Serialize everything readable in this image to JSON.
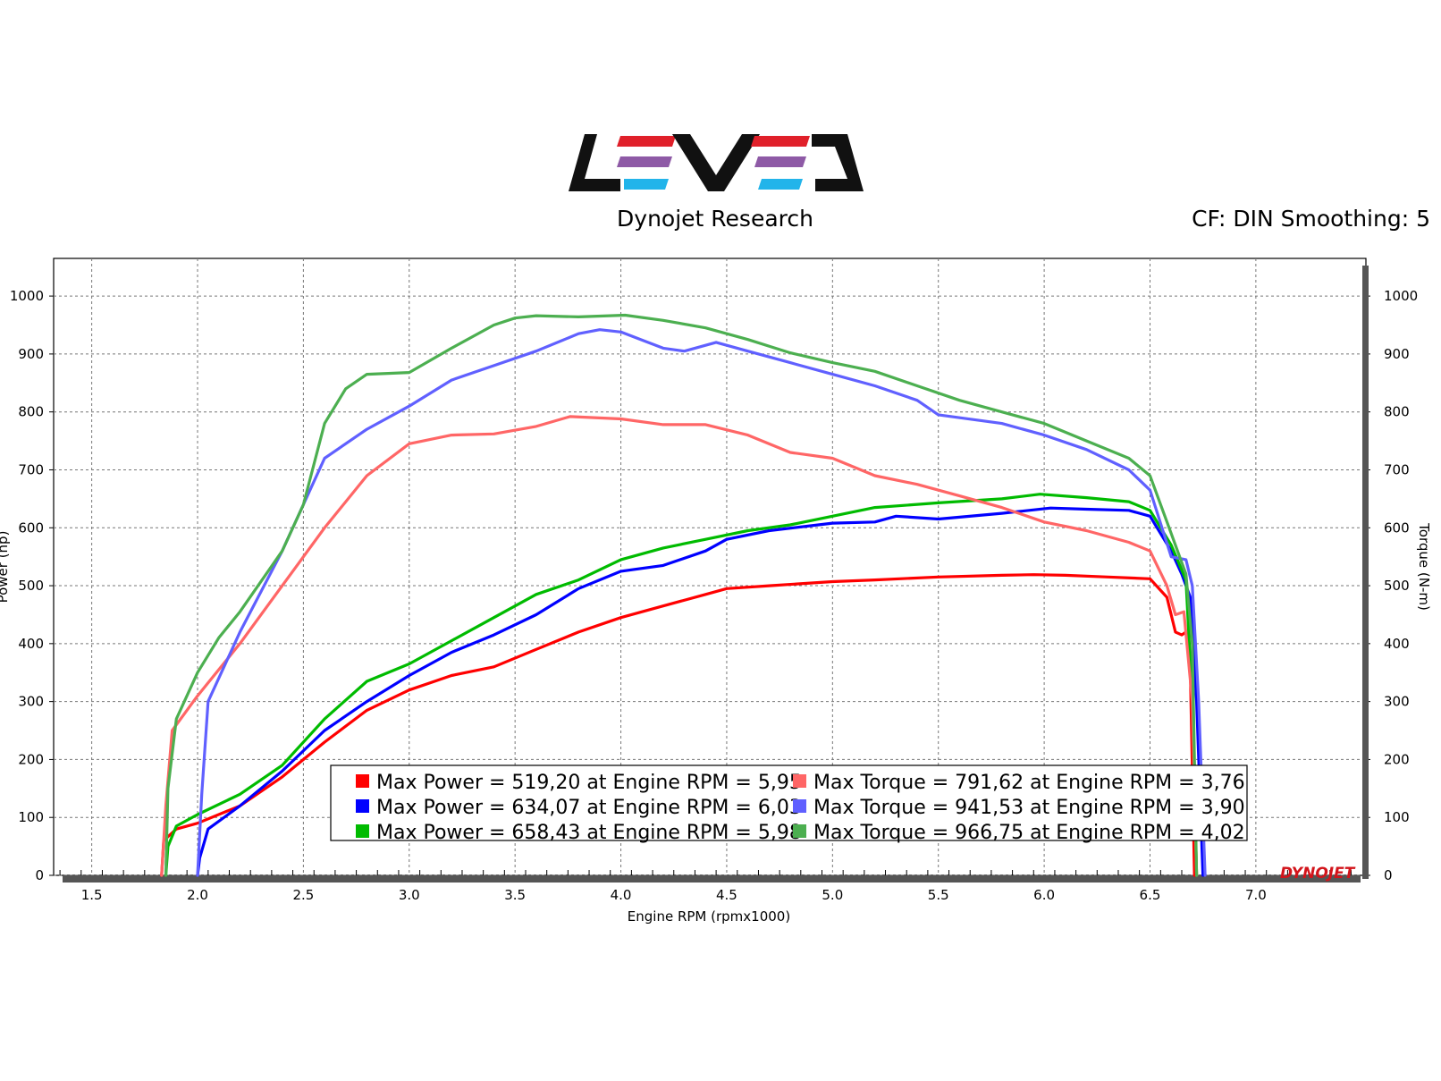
{
  "header": {
    "brand": "Dynojet Research",
    "settings": "CF: DIN Smoothing: 5",
    "corner_mark": "DYNOJET",
    "logo_colors": [
      "#e0202a",
      "#8e5aa6",
      "#22b4ea",
      "#111111"
    ]
  },
  "chart_data": {
    "type": "line",
    "xlabel": "Engine RPM (rpmx1000)",
    "ylabel_left": "Power (hp)",
    "ylabel_right": "Torque (N-m)",
    "xlim": [
      1.32,
      7.52
    ],
    "ylim": [
      0,
      1065
    ],
    "x_ticks": [
      "1.5",
      "2.0",
      "2.5",
      "3.0",
      "3.5",
      "4.0",
      "4.5",
      "5.0",
      "5.5",
      "6.0",
      "6.5",
      "7.0"
    ],
    "x_tick_values": [
      1.5,
      2.0,
      2.5,
      3.0,
      3.5,
      4.0,
      4.5,
      5.0,
      5.5,
      6.0,
      6.5,
      7.0
    ],
    "y_ticks": [
      "0",
      "100",
      "200",
      "300",
      "400",
      "500",
      "600",
      "700",
      "800",
      "900",
      "1000"
    ],
    "y_tick_values": [
      0,
      100,
      200,
      300,
      400,
      500,
      600,
      700,
      800,
      900,
      1000
    ],
    "grid": true,
    "legend_position": "bottom-center",
    "series": [
      {
        "axis": "power",
        "color": "#ff0000",
        "legend": "Max Power = 519,20 at Engine RPM = 5,95",
        "points": [
          [
            1.83,
            0
          ],
          [
            1.84,
            60
          ],
          [
            1.9,
            80
          ],
          [
            2.0,
            90
          ],
          [
            2.2,
            120
          ],
          [
            2.4,
            170
          ],
          [
            2.6,
            230
          ],
          [
            2.8,
            285
          ],
          [
            3.0,
            320
          ],
          [
            3.2,
            345
          ],
          [
            3.4,
            360
          ],
          [
            3.6,
            390
          ],
          [
            3.8,
            420
          ],
          [
            4.0,
            445
          ],
          [
            4.2,
            465
          ],
          [
            4.4,
            485
          ],
          [
            4.5,
            495
          ],
          [
            4.7,
            500
          ],
          [
            5.0,
            507
          ],
          [
            5.2,
            510
          ],
          [
            5.5,
            515
          ],
          [
            5.8,
            518
          ],
          [
            5.95,
            519
          ],
          [
            6.1,
            518
          ],
          [
            6.3,
            515
          ],
          [
            6.5,
            512
          ],
          [
            6.58,
            480
          ],
          [
            6.62,
            420
          ],
          [
            6.65,
            415
          ],
          [
            6.67,
            420
          ],
          [
            6.69,
            360
          ],
          [
            6.71,
            0
          ]
        ]
      },
      {
        "axis": "power",
        "color": "#0000ff",
        "legend": "Max Power = 634,07 at Engine RPM = 6,03",
        "points": [
          [
            2.0,
            0
          ],
          [
            2.01,
            30
          ],
          [
            2.05,
            80
          ],
          [
            2.2,
            120
          ],
          [
            2.4,
            180
          ],
          [
            2.6,
            250
          ],
          [
            2.8,
            300
          ],
          [
            3.0,
            345
          ],
          [
            3.2,
            385
          ],
          [
            3.4,
            415
          ],
          [
            3.6,
            450
          ],
          [
            3.8,
            495
          ],
          [
            4.0,
            525
          ],
          [
            4.2,
            535
          ],
          [
            4.4,
            560
          ],
          [
            4.5,
            580
          ],
          [
            4.7,
            595
          ],
          [
            5.0,
            608
          ],
          [
            5.2,
            610
          ],
          [
            5.3,
            620
          ],
          [
            5.5,
            615
          ],
          [
            5.8,
            625
          ],
          [
            6.03,
            634
          ],
          [
            6.2,
            632
          ],
          [
            6.4,
            630
          ],
          [
            6.5,
            620
          ],
          [
            6.6,
            560
          ],
          [
            6.65,
            520
          ],
          [
            6.69,
            480
          ],
          [
            6.72,
            300
          ],
          [
            6.75,
            0
          ]
        ]
      },
      {
        "axis": "power",
        "color": "#00bb00",
        "legend": "Max Power = 658,43 at Engine RPM = 5,98",
        "points": [
          [
            1.85,
            0
          ],
          [
            1.86,
            50
          ],
          [
            1.9,
            85
          ],
          [
            2.0,
            105
          ],
          [
            2.2,
            140
          ],
          [
            2.4,
            190
          ],
          [
            2.6,
            270
          ],
          [
            2.8,
            335
          ],
          [
            3.0,
            365
          ],
          [
            3.2,
            405
          ],
          [
            3.4,
            445
          ],
          [
            3.6,
            485
          ],
          [
            3.8,
            510
          ],
          [
            4.0,
            545
          ],
          [
            4.2,
            565
          ],
          [
            4.4,
            580
          ],
          [
            4.6,
            595
          ],
          [
            4.8,
            605
          ],
          [
            5.0,
            620
          ],
          [
            5.2,
            635
          ],
          [
            5.5,
            643
          ],
          [
            5.8,
            650
          ],
          [
            5.98,
            658
          ],
          [
            6.2,
            652
          ],
          [
            6.4,
            645
          ],
          [
            6.5,
            630
          ],
          [
            6.6,
            570
          ],
          [
            6.67,
            510
          ],
          [
            6.7,
            300
          ],
          [
            6.72,
            0
          ]
        ]
      },
      {
        "axis": "torque",
        "color": "#ff6666",
        "legend": "Max Torque = 791,62 at Engine RPM = 3,76",
        "points": [
          [
            1.83,
            0
          ],
          [
            1.85,
            120
          ],
          [
            1.88,
            250
          ],
          [
            2.0,
            310
          ],
          [
            2.2,
            400
          ],
          [
            2.4,
            500
          ],
          [
            2.6,
            600
          ],
          [
            2.8,
            690
          ],
          [
            3.0,
            745
          ],
          [
            3.2,
            760
          ],
          [
            3.4,
            762
          ],
          [
            3.6,
            775
          ],
          [
            3.76,
            792
          ],
          [
            4.0,
            788
          ],
          [
            4.2,
            778
          ],
          [
            4.4,
            778
          ],
          [
            4.6,
            760
          ],
          [
            4.8,
            730
          ],
          [
            5.0,
            720
          ],
          [
            5.2,
            690
          ],
          [
            5.4,
            675
          ],
          [
            5.6,
            655
          ],
          [
            5.8,
            635
          ],
          [
            6.0,
            610
          ],
          [
            6.2,
            595
          ],
          [
            6.4,
            575
          ],
          [
            6.5,
            560
          ],
          [
            6.58,
            500
          ],
          [
            6.62,
            450
          ],
          [
            6.66,
            455
          ],
          [
            6.7,
            300
          ],
          [
            6.72,
            0
          ]
        ]
      },
      {
        "axis": "torque",
        "color": "#6060ff",
        "legend": "Max Torque = 941,53 at Engine RPM = 3,90",
        "points": [
          [
            2.0,
            0
          ],
          [
            2.02,
            140
          ],
          [
            2.05,
            300
          ],
          [
            2.2,
            420
          ],
          [
            2.4,
            560
          ],
          [
            2.6,
            720
          ],
          [
            2.8,
            770
          ],
          [
            3.0,
            810
          ],
          [
            3.2,
            855
          ],
          [
            3.4,
            880
          ],
          [
            3.6,
            905
          ],
          [
            3.8,
            935
          ],
          [
            3.9,
            942
          ],
          [
            4.0,
            938
          ],
          [
            4.2,
            910
          ],
          [
            4.3,
            905
          ],
          [
            4.45,
            920
          ],
          [
            4.6,
            905
          ],
          [
            4.8,
            885
          ],
          [
            5.0,
            865
          ],
          [
            5.2,
            845
          ],
          [
            5.4,
            820
          ],
          [
            5.5,
            795
          ],
          [
            5.8,
            780
          ],
          [
            6.0,
            760
          ],
          [
            6.2,
            735
          ],
          [
            6.4,
            700
          ],
          [
            6.5,
            665
          ],
          [
            6.6,
            550
          ],
          [
            6.67,
            545
          ],
          [
            6.7,
            500
          ],
          [
            6.73,
            300
          ],
          [
            6.76,
            0
          ]
        ]
      },
      {
        "axis": "torque",
        "color": "#4caf50",
        "legend": "Max Torque = 966,75 at Engine RPM = 4,02",
        "points": [
          [
            1.85,
            0
          ],
          [
            1.86,
            150
          ],
          [
            1.9,
            270
          ],
          [
            2.0,
            350
          ],
          [
            2.1,
            410
          ],
          [
            2.2,
            455
          ],
          [
            2.4,
            560
          ],
          [
            2.5,
            640
          ],
          [
            2.6,
            780
          ],
          [
            2.7,
            840
          ],
          [
            2.8,
            865
          ],
          [
            3.0,
            868
          ],
          [
            3.2,
            910
          ],
          [
            3.4,
            950
          ],
          [
            3.5,
            962
          ],
          [
            3.6,
            966
          ],
          [
            3.8,
            964
          ],
          [
            4.02,
            967
          ],
          [
            4.2,
            958
          ],
          [
            4.4,
            945
          ],
          [
            4.6,
            925
          ],
          [
            4.8,
            902
          ],
          [
            5.0,
            885
          ],
          [
            5.2,
            870
          ],
          [
            5.4,
            845
          ],
          [
            5.6,
            820
          ],
          [
            5.8,
            800
          ],
          [
            6.0,
            780
          ],
          [
            6.2,
            750
          ],
          [
            6.4,
            720
          ],
          [
            6.5,
            690
          ],
          [
            6.6,
            590
          ],
          [
            6.67,
            520
          ],
          [
            6.7,
            400
          ],
          [
            6.72,
            0
          ]
        ]
      }
    ]
  }
}
